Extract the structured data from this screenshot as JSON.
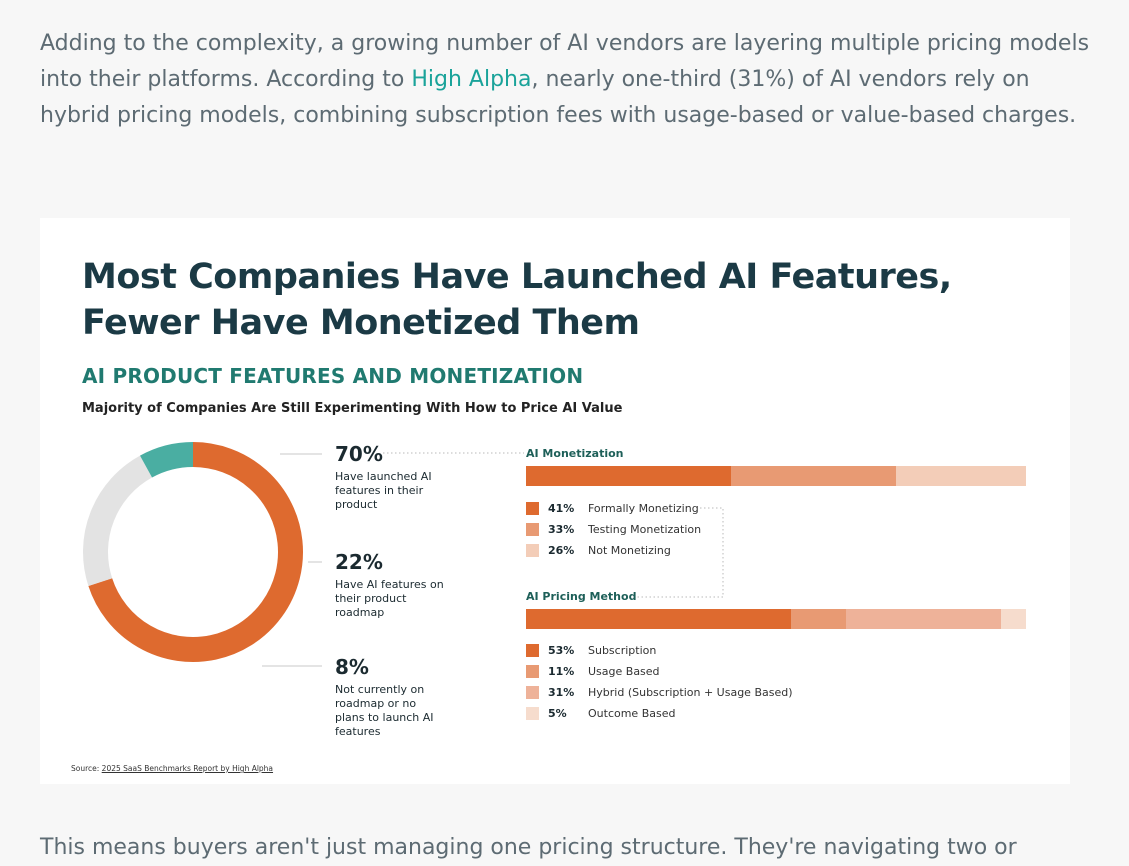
{
  "intro": {
    "before_link": "Adding to the complexity, a growing number of AI vendors are layering multiple pricing models into their platforms. According to ",
    "link_text": "High Alpha",
    "after_link": ", nearly one-third (31%) of AI vendors rely on hybrid pricing models, combining subscription fees with usage-based or value-based charges."
  },
  "outro": "This means buyers aren't just managing one pricing structure. They're navigating two or",
  "colors": {
    "dark_orange": "#de6a2f",
    "mid_orange": "#e89a73",
    "light_orange": "#f3cdb8",
    "lighter_orange": "#eeb299",
    "teal": "#4aaea2",
    "grey": "#e3e3e3",
    "title": "#1b3a45",
    "accent_link": "#1aa39a"
  },
  "chart_data": [
    {
      "type": "pie",
      "title": "Most Companies Have Launched AI Features, Fewer Have Monetized Them",
      "subtitle": "AI PRODUCT FEATURES AND MONETIZATION",
      "description": "Majority of Companies Are Still Experimenting With How to Price AI Value",
      "slices": [
        {
          "label": "Have launched AI features in their product",
          "value": 70,
          "display": "70%",
          "color": "#de6a2f"
        },
        {
          "label": "Have AI features on their product roadmap",
          "value": 22,
          "display": "22%",
          "color": "#e3e3e3"
        },
        {
          "label": "Not currently on roadmap or no plans to launch AI features",
          "value": 8,
          "display": "8%",
          "color": "#4aaea2"
        }
      ]
    },
    {
      "type": "bar",
      "stacked": true,
      "orientation": "horizontal",
      "title": "AI Monetization",
      "series": [
        {
          "name": "Formally Monetizing",
          "value": 41,
          "display": "41%",
          "color": "#de6a2f"
        },
        {
          "name": "Testing Monetization",
          "value": 33,
          "display": "33%",
          "color": "#e89a73"
        },
        {
          "name": "Not Monetizing",
          "value": 26,
          "display": "26%",
          "color": "#f3cdb8"
        }
      ]
    },
    {
      "type": "bar",
      "stacked": true,
      "orientation": "horizontal",
      "title": "AI Pricing Method",
      "series": [
        {
          "name": "Subscription",
          "value": 53,
          "display": "53%",
          "color": "#de6a2f"
        },
        {
          "name": "Usage Based",
          "value": 11,
          "display": "11%",
          "color": "#e89a73"
        },
        {
          "name": "Hybrid (Subscription + Usage Based)",
          "value": 31,
          "display": "31%",
          "color": "#eeb299"
        },
        {
          "name": "Outcome Based",
          "value": 5,
          "display": "5%",
          "color": "#f6dccd"
        }
      ]
    }
  ],
  "source": {
    "prefix": "Source: ",
    "text": "2025 SaaS Benchmarks Report by High Alpha"
  }
}
